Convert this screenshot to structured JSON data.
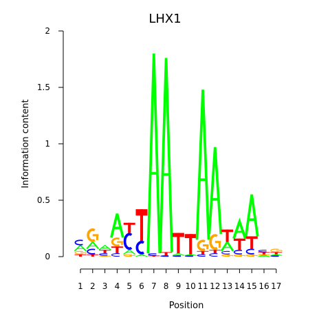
{
  "chart_data": {
    "type": "sequence-logo",
    "title": "LHX1",
    "xlabel": "Position",
    "ylabel": "Information content",
    "ylim": [
      0,
      2
    ],
    "yticks": [
      "0",
      "0.5",
      "1",
      "1.5",
      "2"
    ],
    "xticks": [
      "1",
      "2",
      "3",
      "4",
      "5",
      "6",
      "7",
      "8",
      "9",
      "10",
      "11",
      "12",
      "13",
      "14",
      "15",
      "16",
      "17"
    ],
    "colors": {
      "A": "#00ff00",
      "C": "#0000ff",
      "G": "#ffa500",
      "T": "#ff0000"
    },
    "positions": [
      {
        "position": 1,
        "letters": [
          {
            "base": "T",
            "height": 0.02
          },
          {
            "base": "G",
            "height": 0.03
          },
          {
            "base": "A",
            "height": 0.05
          },
          {
            "base": "C",
            "height": 0.05
          }
        ]
      },
      {
        "position": 2,
        "letters": [
          {
            "base": "T",
            "height": 0.02
          },
          {
            "base": "C",
            "height": 0.05
          },
          {
            "base": "A",
            "height": 0.06
          },
          {
            "base": "G",
            "height": 0.12
          }
        ]
      },
      {
        "position": 3,
        "letters": [
          {
            "base": "G",
            "height": 0.01
          },
          {
            "base": "C",
            "height": 0.02
          },
          {
            "base": "T",
            "height": 0.03
          },
          {
            "base": "A",
            "height": 0.04
          }
        ]
      },
      {
        "position": 4,
        "letters": [
          {
            "base": "C",
            "height": 0.03
          },
          {
            "base": "T",
            "height": 0.06
          },
          {
            "base": "G",
            "height": 0.08
          },
          {
            "base": "A",
            "height": 0.21
          }
        ]
      },
      {
        "position": 5,
        "letters": [
          {
            "base": "G",
            "height": 0.02
          },
          {
            "base": "A",
            "height": 0.04
          },
          {
            "base": "C",
            "height": 0.15
          },
          {
            "base": "T",
            "height": 0.09
          }
        ]
      },
      {
        "position": 6,
        "letters": [
          {
            "base": "A",
            "height": 0.02
          },
          {
            "base": "C",
            "height": 0.12
          },
          {
            "base": "T",
            "height": 0.28
          }
        ]
      },
      {
        "position": 7,
        "letters": [
          {
            "base": "T",
            "height": 0.01
          },
          {
            "base": "C",
            "height": 0.02
          },
          {
            "base": "A",
            "height": 1.77
          }
        ]
      },
      {
        "position": 8,
        "letters": [
          {
            "base": "C",
            "height": 0.01
          },
          {
            "base": "T",
            "height": 0.03
          },
          {
            "base": "A",
            "height": 1.72
          }
        ]
      },
      {
        "position": 9,
        "letters": [
          {
            "base": "C",
            "height": 0.01
          },
          {
            "base": "A",
            "height": 0.02
          },
          {
            "base": "T",
            "height": 0.18
          }
        ]
      },
      {
        "position": 10,
        "letters": [
          {
            "base": "C",
            "height": 0.01
          },
          {
            "base": "A",
            "height": 0.01
          },
          {
            "base": "T",
            "height": 0.18
          }
        ]
      },
      {
        "position": 11,
        "letters": [
          {
            "base": "C",
            "height": 0.02
          },
          {
            "base": "T",
            "height": 0.03
          },
          {
            "base": "G",
            "height": 0.1
          },
          {
            "base": "A",
            "height": 1.33
          }
        ]
      },
      {
        "position": 12,
        "letters": [
          {
            "base": "C",
            "height": 0.03
          },
          {
            "base": "T",
            "height": 0.03
          },
          {
            "base": "G",
            "height": 0.14
          },
          {
            "base": "A",
            "height": 0.77
          }
        ]
      },
      {
        "position": 13,
        "letters": [
          {
            "base": "G",
            "height": 0.02
          },
          {
            "base": "C",
            "height": 0.03
          },
          {
            "base": "A",
            "height": 0.08
          },
          {
            "base": "T",
            "height": 0.11
          }
        ]
      },
      {
        "position": 14,
        "letters": [
          {
            "base": "G",
            "height": 0.02
          },
          {
            "base": "C",
            "height": 0.04
          },
          {
            "base": "T",
            "height": 0.1
          },
          {
            "base": "A",
            "height": 0.15
          }
        ]
      },
      {
        "position": 15,
        "letters": [
          {
            "base": "G",
            "height": 0.02
          },
          {
            "base": "C",
            "height": 0.05
          },
          {
            "base": "T",
            "height": 0.11
          },
          {
            "base": "A",
            "height": 0.37
          }
        ]
      },
      {
        "position": 16,
        "letters": [
          {
            "base": "A",
            "height": 0.01
          },
          {
            "base": "G",
            "height": 0.01
          },
          {
            "base": "T",
            "height": 0.02
          },
          {
            "base": "C",
            "height": 0.02
          }
        ]
      },
      {
        "position": 17,
        "letters": [
          {
            "base": "C",
            "height": 0.01
          },
          {
            "base": "A",
            "height": 0.01
          },
          {
            "base": "T",
            "height": 0.02
          },
          {
            "base": "G",
            "height": 0.03
          }
        ]
      }
    ]
  }
}
